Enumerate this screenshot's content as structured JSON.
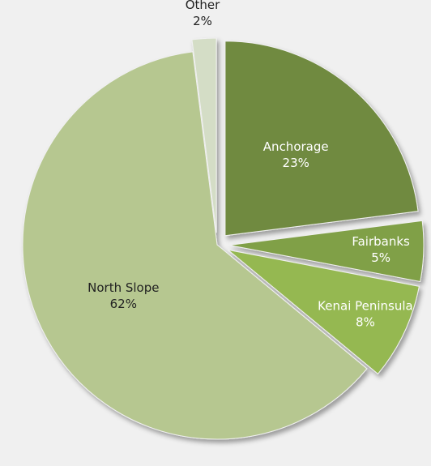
{
  "chart_data": {
    "type": "pie",
    "categories": [
      "Anchorage",
      "Fairbanks",
      "Kenai Peninsula",
      "North Slope",
      "Other"
    ],
    "values": [
      23,
      5,
      8,
      62,
      2
    ],
    "value_labels": [
      "23%",
      "5%",
      "8%",
      "62%",
      "2%"
    ],
    "colors": [
      "#6f8a3f",
      "#80a046",
      "#95b851",
      "#b6c790",
      "#d4ddc6"
    ],
    "explode": [
      true,
      true,
      true,
      false,
      true
    ]
  }
}
